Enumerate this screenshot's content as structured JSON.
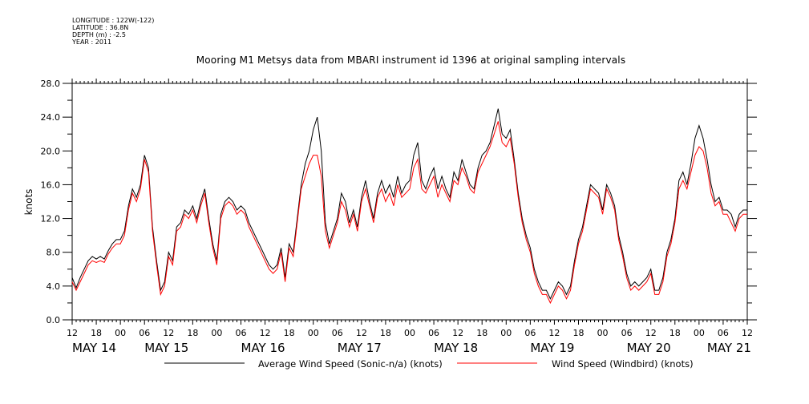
{
  "header": {
    "longitude": "LONGITUDE : 122W(-122)",
    "latitude": "LATITUDE : 36.8N",
    "depth": "DEPTH (m) : -2.5",
    "year": "YEAR : 2011"
  },
  "chart_data": {
    "type": "line",
    "title": "Mooring M1 Metsys data from MBARI instrument id 1396 at original sampling intervals",
    "ylabel": "knots",
    "xlabel": "",
    "ylim": [
      0,
      28
    ],
    "yticks": [
      "0.0",
      "4.0",
      "8.0",
      "12.0",
      "16.0",
      "20.0",
      "24.0",
      "28.0"
    ],
    "xlim_hours": [
      0,
      168
    ],
    "xticks": [
      "12",
      "18",
      "00",
      "06",
      "12",
      "18",
      "00",
      "06",
      "12",
      "18",
      "00",
      "06",
      "12",
      "18",
      "00",
      "06",
      "12",
      "18",
      "00",
      "06",
      "12",
      "18",
      "00",
      "06",
      "12",
      "18",
      "00",
      "06",
      "12"
    ],
    "date_labels": [
      {
        "label": "MAY 14",
        "hour": 0
      },
      {
        "label": "MAY 15",
        "hour": 18
      },
      {
        "label": "MAY 16",
        "hour": 42
      },
      {
        "label": "MAY 17",
        "hour": 66
      },
      {
        "label": "MAY 18",
        "hour": 90
      },
      {
        "label": "MAY 19",
        "hour": 114
      },
      {
        "label": "MAY 20",
        "hour": 138
      },
      {
        "label": "MAY 21",
        "hour": 158
      }
    ],
    "grid": false,
    "legend_position": "bottom",
    "series": [
      {
        "name": "Average Wind Speed (Sonic-n/a) (knots)",
        "color": "#000000",
        "x": [
          0,
          1,
          2,
          3,
          4,
          5,
          6,
          7,
          8,
          9,
          10,
          11,
          12,
          13,
          14,
          15,
          16,
          17,
          18,
          19,
          20,
          21,
          22,
          23,
          24,
          25,
          26,
          27,
          28,
          29,
          30,
          31,
          32,
          33,
          34,
          35,
          36,
          37,
          38,
          39,
          40,
          41,
          42,
          43,
          44,
          45,
          46,
          47,
          48,
          49,
          50,
          51,
          52,
          53,
          54,
          55,
          56,
          57,
          58,
          59,
          60,
          61,
          62,
          63,
          64,
          65,
          66,
          67,
          68,
          69,
          70,
          71,
          72,
          73,
          74,
          75,
          76,
          77,
          78,
          79,
          80,
          81,
          82,
          83,
          84,
          85,
          86,
          87,
          88,
          89,
          90,
          91,
          92,
          93,
          94,
          95,
          96,
          97,
          98,
          99,
          100,
          101,
          102,
          103,
          104,
          105,
          106,
          107,
          108,
          109,
          110,
          111,
          112,
          113,
          114,
          115,
          116,
          117,
          118,
          119,
          120,
          121,
          122,
          123,
          124,
          125,
          126,
          127,
          128,
          129,
          130,
          131,
          132,
          133,
          134,
          135,
          136,
          137,
          138,
          139,
          140,
          141,
          142,
          143,
          144,
          145,
          146,
          147,
          148,
          149,
          150,
          151,
          152,
          153,
          154,
          155,
          156,
          157,
          158,
          159,
          160,
          161,
          162,
          163,
          164,
          165,
          166,
          167,
          168
        ],
        "y": [
          5.0,
          3.8,
          5.0,
          6.0,
          7.0,
          7.5,
          7.2,
          7.5,
          7.2,
          8.2,
          9.0,
          9.5,
          9.5,
          10.5,
          13.5,
          15.5,
          14.5,
          16.0,
          19.5,
          18.0,
          11.0,
          7.0,
          3.5,
          4.5,
          8.0,
          7.0,
          11.0,
          11.5,
          13.0,
          12.5,
          13.5,
          12.0,
          14.0,
          15.5,
          12.0,
          9.0,
          7.0,
          12.5,
          14.0,
          14.5,
          14.0,
          13.0,
          13.5,
          13.0,
          11.5,
          10.5,
          9.5,
          8.5,
          7.5,
          6.5,
          6.0,
          6.5,
          8.5,
          5.0,
          9.0,
          8.0,
          12.0,
          16.0,
          18.5,
          20.0,
          22.5,
          24.0,
          20.0,
          11.5,
          9.0,
          10.5,
          12.0,
          15.0,
          14.0,
          11.5,
          13.0,
          11.0,
          14.5,
          16.5,
          14.0,
          12.0,
          15.0,
          16.5,
          15.0,
          16.0,
          14.5,
          17.0,
          15.0,
          16.0,
          16.5,
          19.5,
          21.0,
          16.5,
          15.5,
          17.0,
          18.0,
          15.5,
          17.0,
          15.5,
          14.5,
          17.5,
          16.5,
          19.0,
          17.5,
          16.0,
          15.5,
          18.0,
          19.5,
          20.0,
          21.0,
          23.0,
          25.0,
          22.0,
          21.5,
          22.5,
          19.0,
          15.0,
          12.0,
          10.0,
          8.5,
          6.0,
          4.5,
          3.5,
          3.5,
          2.5,
          3.5,
          4.5,
          4.0,
          3.0,
          4.0,
          7.0,
          9.5,
          11.0,
          13.5,
          16.0,
          15.5,
          15.0,
          13.0,
          16.0,
          15.0,
          13.5,
          10.0,
          8.0,
          5.5,
          4.0,
          4.5,
          4.0,
          4.5,
          5.0,
          6.0,
          3.5,
          3.5,
          5.0,
          8.0,
          9.5,
          12.0,
          16.5,
          17.5,
          16.0,
          18.5,
          21.5,
          23.0,
          21.5,
          19.0,
          16.0,
          14.0,
          14.5,
          13.0,
          13.0,
          12.5,
          11.0,
          12.5,
          13.0,
          13.0
        ]
      },
      {
        "name": "Wind Speed (Windbird) (knots)",
        "color": "#ff0000",
        "x": [
          0,
          1,
          2,
          3,
          4,
          5,
          6,
          7,
          8,
          9,
          10,
          11,
          12,
          13,
          14,
          15,
          16,
          17,
          18,
          19,
          20,
          21,
          22,
          23,
          24,
          25,
          26,
          27,
          28,
          29,
          30,
          31,
          32,
          33,
          34,
          35,
          36,
          37,
          38,
          39,
          40,
          41,
          42,
          43,
          44,
          45,
          46,
          47,
          48,
          49,
          50,
          51,
          52,
          53,
          54,
          55,
          56,
          57,
          58,
          59,
          60,
          61,
          62,
          63,
          64,
          65,
          66,
          67,
          68,
          69,
          70,
          71,
          72,
          73,
          74,
          75,
          76,
          77,
          78,
          79,
          80,
          81,
          82,
          83,
          84,
          85,
          86,
          87,
          88,
          89,
          90,
          91,
          92,
          93,
          94,
          95,
          96,
          97,
          98,
          99,
          100,
          101,
          102,
          103,
          104,
          105,
          106,
          107,
          108,
          109,
          110,
          111,
          112,
          113,
          114,
          115,
          116,
          117,
          118,
          119,
          120,
          121,
          122,
          123,
          124,
          125,
          126,
          127,
          128,
          129,
          130,
          131,
          132,
          133,
          134,
          135,
          136,
          137,
          138,
          139,
          140,
          141,
          142,
          143,
          144,
          145,
          146,
          147,
          148,
          149,
          150,
          151,
          152,
          153,
          154,
          155,
          156,
          157,
          158,
          159,
          160,
          161,
          162,
          163,
          164,
          165,
          166,
          167,
          168
        ],
        "y": [
          4.5,
          3.5,
          4.5,
          5.5,
          6.5,
          7.0,
          6.8,
          7.0,
          6.8,
          7.8,
          8.5,
          9.0,
          9.0,
          10.0,
          13.0,
          15.0,
          14.0,
          15.5,
          19.0,
          17.5,
          10.5,
          6.5,
          3.0,
          4.0,
          7.5,
          6.5,
          10.5,
          11.0,
          12.5,
          12.0,
          13.0,
          11.5,
          13.5,
          15.0,
          11.5,
          8.5,
          6.5,
          12.0,
          13.5,
          14.0,
          13.5,
          12.5,
          13.0,
          12.5,
          11.0,
          10.0,
          9.0,
          8.0,
          7.0,
          6.0,
          5.5,
          6.0,
          8.0,
          4.5,
          8.5,
          7.5,
          11.5,
          15.5,
          17.0,
          18.5,
          19.5,
          19.5,
          17.0,
          10.5,
          8.5,
          10.0,
          11.5,
          14.0,
          13.0,
          11.0,
          12.5,
          10.5,
          14.0,
          15.5,
          13.5,
          11.5,
          14.5,
          15.5,
          14.0,
          15.0,
          13.5,
          16.0,
          14.5,
          15.0,
          15.5,
          18.0,
          19.0,
          15.5,
          15.0,
          16.0,
          17.0,
          14.5,
          16.0,
          15.0,
          14.0,
          16.5,
          16.0,
          18.0,
          17.0,
          15.5,
          15.0,
          17.5,
          18.5,
          19.5,
          20.5,
          22.0,
          23.5,
          21.0,
          20.5,
          21.5,
          18.5,
          14.5,
          11.5,
          9.5,
          8.0,
          5.5,
          4.0,
          3.0,
          3.0,
          2.0,
          3.0,
          4.0,
          3.5,
          2.5,
          3.5,
          6.5,
          9.0,
          10.5,
          13.0,
          15.5,
          15.0,
          14.5,
          12.5,
          15.5,
          14.5,
          13.0,
          9.5,
          7.5,
          5.0,
          3.5,
          4.0,
          3.5,
          4.0,
          4.5,
          5.5,
          3.0,
          3.0,
          4.5,
          7.5,
          9.0,
          11.5,
          15.5,
          16.5,
          15.5,
          17.5,
          19.5,
          20.5,
          20.0,
          18.0,
          15.0,
          13.5,
          14.0,
          12.5,
          12.5,
          11.5,
          10.5,
          12.0,
          12.5,
          12.5
        ]
      }
    ]
  }
}
